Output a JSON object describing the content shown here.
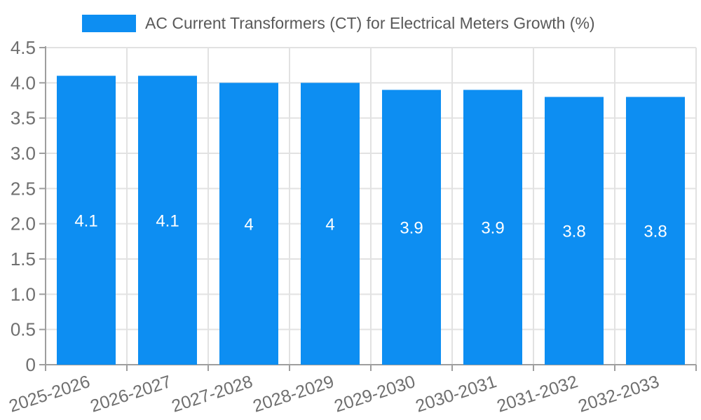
{
  "chart_data": {
    "type": "bar",
    "legend_label": "AC Current Transformers (CT) for Electrical Meters Growth (%)",
    "legend_position": "top",
    "categories": [
      "2025-2026",
      "2026-2027",
      "2027-2028",
      "2028-2029",
      "2029-2030",
      "2030-2031",
      "2031-2032",
      "2032-2033"
    ],
    "series": [
      {
        "name": "AC Current Transformers (CT) for Electrical Meters Growth (%)",
        "values": [
          4.1,
          4.1,
          4.0,
          4.0,
          3.9,
          3.9,
          3.8,
          3.8
        ],
        "value_labels": [
          "4.1",
          "4.1",
          "4",
          "4",
          "3.9",
          "3.9",
          "3.8",
          "3.8"
        ]
      }
    ],
    "xlabel": "",
    "ylabel": "",
    "ylim": [
      0,
      4.5
    ],
    "ytick_step": 0.5,
    "ytick_labels": [
      "0",
      "0.5",
      "1.0",
      "1.5",
      "2.0",
      "2.5",
      "3.0",
      "3.5",
      "4.0",
      "4.5"
    ],
    "grid": "on",
    "colors": {
      "bar": "#0d8ef2",
      "grid_line": "#e2e2e2",
      "axis_line": "#9e9e9e",
      "tick_mark": "#9e9e9e",
      "tick_text": "#6f6f6f",
      "value_text": "#ffffff",
      "legend_text": "#595959",
      "background": "#ffffff"
    }
  }
}
